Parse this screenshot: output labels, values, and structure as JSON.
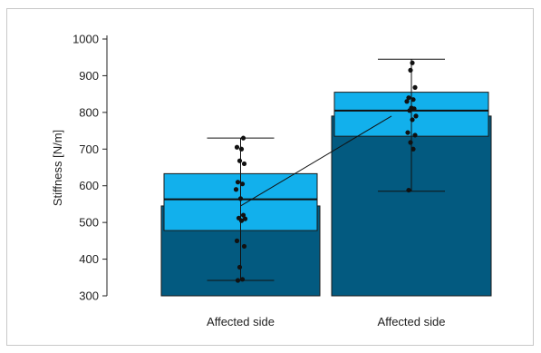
{
  "chart_data": {
    "type": "bar",
    "ylabel": "Stiffness [N/m]",
    "ylim": [
      300,
      1000
    ],
    "yticks": [
      300,
      400,
      500,
      600,
      700,
      800,
      900,
      1000
    ],
    "categories": [
      "Affected side",
      "Affected side"
    ],
    "bar_values": [
      545,
      790
    ],
    "boxes": [
      {
        "q1": 478,
        "median": 563,
        "q3": 633,
        "whisker_low": 342,
        "whisker_high": 730
      },
      {
        "q1": 735,
        "median": 805,
        "q3": 855,
        "whisker_low": 585,
        "whisker_high": 945
      }
    ],
    "connector_means": [
      545,
      790
    ],
    "points": [
      [
        342,
        345,
        378,
        435,
        450,
        505,
        510,
        512,
        520,
        565,
        590,
        605,
        610,
        660,
        668,
        700,
        705,
        730
      ],
      [
        588,
        700,
        718,
        738,
        745,
        780,
        790,
        805,
        810,
        812,
        830,
        835,
        840,
        868,
        915,
        935
      ]
    ],
    "colors": {
      "bar": "#035a80",
      "box": "#12b0ec",
      "edge": "#1a1a1a",
      "point": "#111111"
    }
  }
}
